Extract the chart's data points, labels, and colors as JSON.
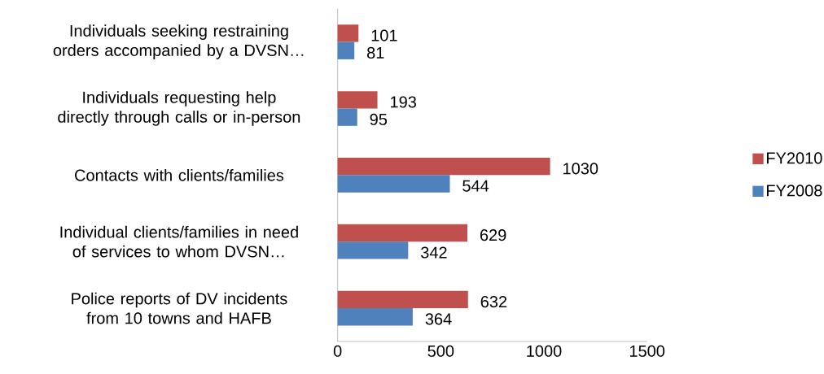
{
  "chart_data": {
    "type": "bar",
    "orientation": "horizontal",
    "categories": [
      "Individuals seeking restraining orders accompanied by a DVSN…",
      "Individuals requesting help directly through calls or in-person",
      "Contacts with clients/families",
      "Individual clients/families in need of services to whom DVSN…",
      "Police reports of DV incidents from 10 towns and HAFB"
    ],
    "series": [
      {
        "name": "FY2010",
        "color": "#c0504d",
        "values": [
          101,
          193,
          1030,
          629,
          632
        ]
      },
      {
        "name": "FY2008",
        "color": "#4f81bd",
        "values": [
          81,
          95,
          544,
          342,
          364
        ]
      }
    ],
    "xlim": [
      0,
      1500
    ],
    "xticks": [
      0,
      500,
      1000,
      1500
    ],
    "data_labels": true,
    "legend": "right"
  }
}
